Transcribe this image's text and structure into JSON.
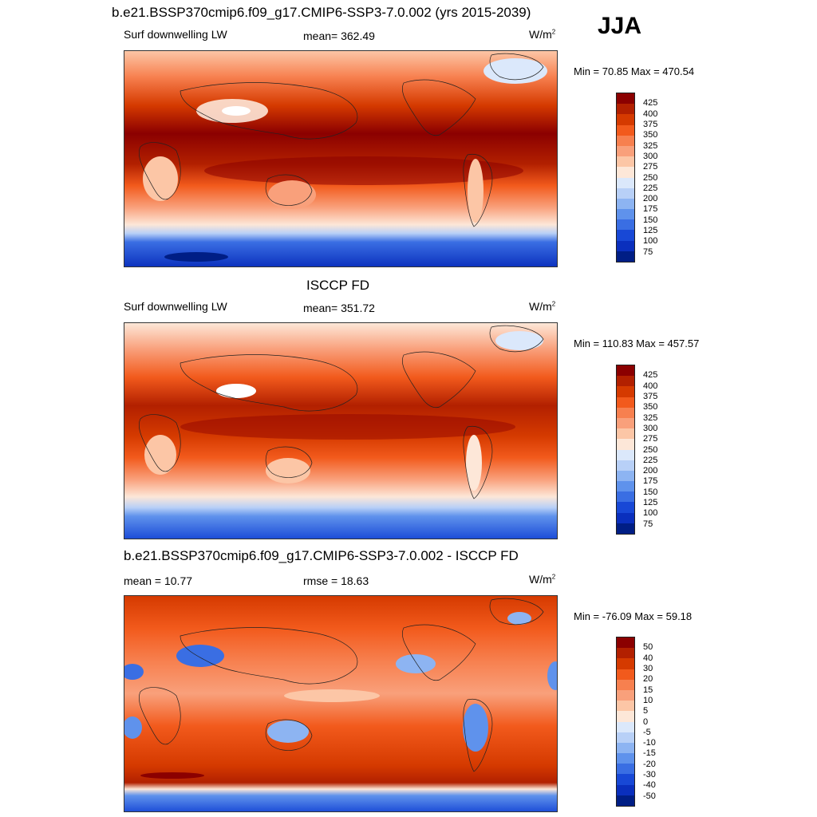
{
  "season": "JJA",
  "panels": [
    {
      "title": "b.e21.BSSP370cmip6.f09_g17.CMIP6-SSP3-7.0.002 (yrs 2015-2039)",
      "left_label": "Surf downwelling LW",
      "center_label": "mean= 362.49",
      "unit": "W/m",
      "unit_exp": "2",
      "minmax": "Min =  70.85 Max = 470.54",
      "colorbar": {
        "labels": [
          "425",
          "400",
          "375",
          "350",
          "325",
          "300",
          "275",
          "250",
          "225",
          "200",
          "175",
          "150",
          "125",
          "100",
          "75"
        ],
        "colors": [
          "#8b0000",
          "#b22000",
          "#d53a00",
          "#f25a1c",
          "#f7804f",
          "#f9a07b",
          "#fcc6a6",
          "#fde7d8",
          "#dbe8fb",
          "#b8d0f7",
          "#8db4f2",
          "#5f92ec",
          "#3a6ee3",
          "#1848d6",
          "#0a2fbd",
          "#001e85"
        ]
      }
    },
    {
      "title": "ISCCP FD",
      "left_label": "Surf downwelling LW",
      "center_label": "mean= 351.72",
      "unit": "W/m",
      "unit_exp": "2",
      "minmax": "Min = 110.83 Max = 457.57",
      "colorbar": {
        "labels": [
          "425",
          "400",
          "375",
          "350",
          "325",
          "300",
          "275",
          "250",
          "225",
          "200",
          "175",
          "150",
          "125",
          "100",
          "75"
        ],
        "colors": [
          "#8b0000",
          "#b22000",
          "#d53a00",
          "#f25a1c",
          "#f7804f",
          "#f9a07b",
          "#fcc6a6",
          "#fde7d8",
          "#dbe8fb",
          "#b8d0f7",
          "#8db4f2",
          "#5f92ec",
          "#3a6ee3",
          "#1848d6",
          "#0a2fbd",
          "#001e85"
        ]
      }
    },
    {
      "title": "b.e21.BSSP370cmip6.f09_g17.CMIP6-SSP3-7.0.002 - ISCCP FD",
      "left_label": "mean =  10.77",
      "center_label": "rmse =  18.63",
      "unit": "W/m",
      "unit_exp": "2",
      "minmax": "Min = -76.09 Max =  59.18",
      "colorbar": {
        "labels": [
          "50",
          "40",
          "30",
          "20",
          "15",
          "10",
          "5",
          "0",
          "-5",
          "-10",
          "-15",
          "-20",
          "-30",
          "-40",
          "-50"
        ],
        "colors": [
          "#8b0000",
          "#b22000",
          "#d53a00",
          "#f25a1c",
          "#f7804f",
          "#f9a07b",
          "#fcc6a6",
          "#fde7d8",
          "#dbe8fb",
          "#b8d0f7",
          "#8db4f2",
          "#5f92ec",
          "#3a6ee3",
          "#1848d6",
          "#0a2fbd",
          "#001e85"
        ]
      }
    }
  ]
}
